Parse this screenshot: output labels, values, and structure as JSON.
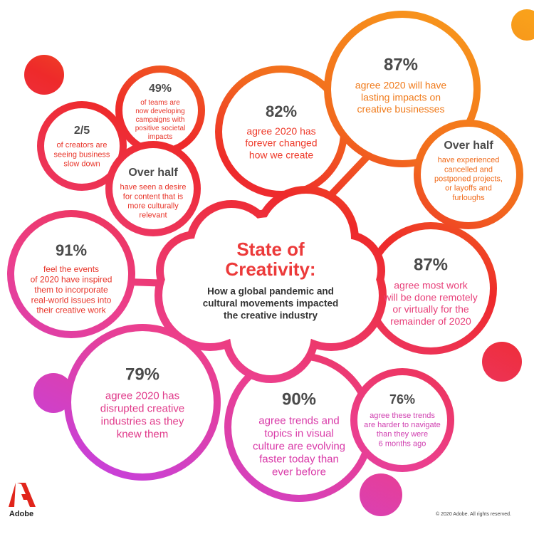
{
  "title": [
    "State of",
    "Creativity:"
  ],
  "subtitle": [
    "How a global pandemic and",
    "cultural movements impacted",
    "the creative industry"
  ],
  "stats": [
    {
      "value": "49%",
      "lines": [
        "of teams are",
        "now developing",
        "campaigns with",
        "positive societal",
        "impacts"
      ]
    },
    {
      "value": "2/5",
      "lines": [
        "of creators are",
        "seeing business",
        "slow down"
      ]
    },
    {
      "value": "Over half",
      "lines": [
        "have seen a desire",
        "for content that is",
        "more culturally",
        "relevant"
      ]
    },
    {
      "value": "82%",
      "lines": [
        "agree 2020 has",
        "forever changed",
        "how we create"
      ]
    },
    {
      "value": "87%",
      "lines": [
        "agree 2020 will have",
        "lasting impacts on",
        "creative businesses"
      ]
    },
    {
      "value": "Over half",
      "lines": [
        "have experienced",
        "cancelled and",
        "postponed projects,",
        "or layoffs and",
        "furloughs"
      ]
    },
    {
      "value": "91%",
      "lines": [
        "feel the events",
        "of 2020 have inspired",
        "them to incorporate",
        "real-world issues into",
        "their creative work"
      ]
    },
    {
      "value": "87%",
      "lines": [
        "agree most work",
        "will be done remotely",
        "or virtually for the",
        "remainder of 2020"
      ]
    },
    {
      "value": "79%",
      "lines": [
        "agree 2020 has",
        "disrupted creative",
        "industries as they",
        "knew them"
      ]
    },
    {
      "value": "90%",
      "lines": [
        "agree trends and",
        "topics in visual",
        "culture are evolving",
        "faster today than",
        "ever before"
      ]
    },
    {
      "value": "76%",
      "lines": [
        "agree these trends",
        "are harder to navigate",
        "than they were",
        "6 months ago"
      ]
    }
  ],
  "brand": "Adobe",
  "footer": "© 2020 Adobe. All rights reserved."
}
